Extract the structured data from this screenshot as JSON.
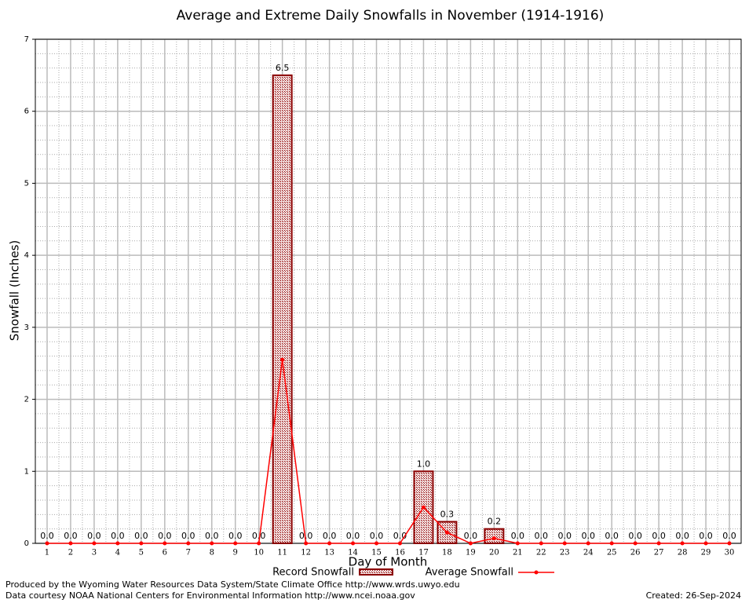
{
  "chart_data": {
    "type": "bar",
    "title": "Average and Extreme Daily Snowfalls in November (1914-1916)",
    "x_label": "Day of Month",
    "y_label": "Snowfall (Inches)",
    "categories": [
      "1",
      "2",
      "3",
      "4",
      "5",
      "6",
      "7",
      "8",
      "9",
      "10",
      "11",
      "12",
      "13",
      "14",
      "15",
      "16",
      "17",
      "18",
      "19",
      "20",
      "21",
      "22",
      "23",
      "24",
      "25",
      "26",
      "27",
      "28",
      "29",
      "30"
    ],
    "series": [
      {
        "name": "Record Snowfall",
        "type": "bar",
        "color": "#8b0000",
        "values": [
          0,
          0,
          0,
          0,
          0,
          0,
          0,
          0,
          0,
          0,
          6.5,
          0,
          0,
          0,
          0,
          0,
          1.0,
          0.3,
          0,
          0.2,
          0,
          0,
          0,
          0,
          0,
          0,
          0,
          0,
          0,
          0
        ],
        "value_labels": [
          "0.0",
          "0.0",
          "0.0",
          "0.0",
          "0.0",
          "0.0",
          "0.0",
          "0.0",
          "0.0",
          "0.0",
          "6.5",
          "0.0",
          "0.0",
          "0.0",
          "0.0",
          "0.0",
          "1.0",
          "0.3",
          "0.0",
          "0.2",
          "0.0",
          "0.0",
          "0.0",
          "0.0",
          "0.0",
          "0.0",
          "0.0",
          "0.0",
          "0.0",
          "0.0"
        ]
      },
      {
        "name": "Average Snowfall",
        "type": "line",
        "color": "#ff0000",
        "values": [
          0,
          0,
          0,
          0,
          0,
          0,
          0,
          0,
          0,
          0,
          2.55,
          0,
          0,
          0,
          0,
          0,
          0.5,
          0.15,
          0,
          0.07,
          0,
          0,
          0,
          0,
          0,
          0,
          0,
          0,
          0,
          0
        ]
      }
    ],
    "ylim": [
      0,
      7
    ],
    "yticks": [
      0,
      1,
      2,
      3,
      4,
      5,
      6,
      7
    ],
    "grid": true,
    "footer": [
      "Produced by the Wyoming Water Resources Data System/State Climate Office http://www.wrds.uwyo.edu",
      "Data courtesy NOAA National Centers for Environmental Information http://www.ncei.noaa.gov"
    ],
    "created": "Created:  26-Sep-2024"
  }
}
